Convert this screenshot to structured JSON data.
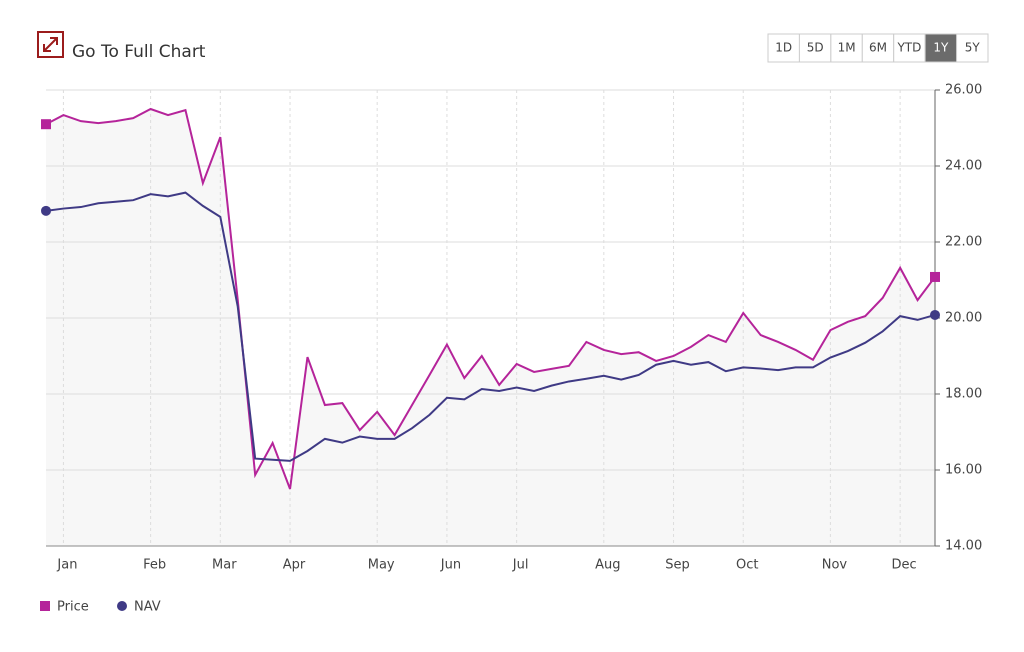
{
  "header": {
    "title": "Go To Full Chart",
    "ranges": [
      "1D",
      "5D",
      "1M",
      "6M",
      "YTD",
      "1Y",
      "5Y"
    ],
    "active_range": "1Y"
  },
  "chart_data": {
    "type": "line",
    "categories": [
      null,
      "Jan",
      null,
      null,
      null,
      null,
      "Feb",
      null,
      null,
      null,
      "Mar",
      null,
      null,
      null,
      "Apr",
      null,
      null,
      null,
      null,
      "May",
      null,
      null,
      null,
      "Jun",
      null,
      null,
      null,
      "Jul",
      null,
      null,
      null,
      null,
      "Aug",
      null,
      null,
      null,
      "Sep",
      null,
      null,
      null,
      "Oct",
      null,
      null,
      null,
      null,
      "Nov",
      null,
      null,
      null,
      "Dec",
      null,
      null
    ],
    "series": [
      {
        "name": "Price",
        "color": "#b5249a",
        "marker": "square",
        "values": [
          25.1,
          25.34,
          25.18,
          25.13,
          25.18,
          25.26,
          25.5,
          25.34,
          25.47,
          23.55,
          24.76,
          20.47,
          15.87,
          16.71,
          15.5,
          18.97,
          17.71,
          17.76,
          17.05,
          17.53,
          16.92,
          17.71,
          18.5,
          19.3,
          18.42,
          19.0,
          18.24,
          18.79,
          18.58,
          18.66,
          18.74,
          19.37,
          19.16,
          19.05,
          19.1,
          18.87,
          19.0,
          19.24,
          19.55,
          19.37,
          20.13,
          19.55,
          19.37,
          19.16,
          18.9,
          19.68,
          19.9,
          20.05,
          20.53,
          21.32,
          20.47,
          21.08
        ]
      },
      {
        "name": "NAV",
        "color": "#3f3a85",
        "marker": "circle",
        "values": [
          22.82,
          22.88,
          22.92,
          23.02,
          23.06,
          23.1,
          23.26,
          23.2,
          23.3,
          22.95,
          22.66,
          20.3,
          16.3,
          16.27,
          16.24,
          16.5,
          16.82,
          16.72,
          16.88,
          16.82,
          16.82,
          17.1,
          17.45,
          17.9,
          17.86,
          18.13,
          18.08,
          18.17,
          18.08,
          18.22,
          18.33,
          18.4,
          18.48,
          18.38,
          18.5,
          18.77,
          18.87,
          18.77,
          18.84,
          18.6,
          18.7,
          18.67,
          18.63,
          18.7,
          18.7,
          18.96,
          19.13,
          19.35,
          19.65,
          20.05,
          19.95,
          20.08
        ]
      }
    ],
    "ylim": [
      14,
      26
    ],
    "yticks": [
      {
        "value": 14,
        "label": "14.00"
      },
      {
        "value": 16,
        "label": "16.00"
      },
      {
        "value": 18,
        "label": "18.00"
      },
      {
        "value": 20,
        "label": "20.00"
      },
      {
        "value": 22,
        "label": "22.00"
      },
      {
        "value": 24,
        "label": "24.00"
      },
      {
        "value": 26,
        "label": "26.00"
      }
    ],
    "grid": true
  }
}
